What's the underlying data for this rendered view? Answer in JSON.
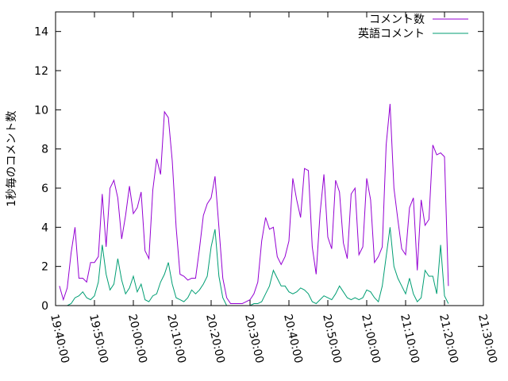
{
  "chart_data": {
    "type": "line",
    "ylabel": "1秒毎のコメント数",
    "xlim_seconds": [
      0,
      6600
    ],
    "ylim": [
      0,
      15
    ],
    "yticks": [
      0,
      2,
      4,
      6,
      8,
      10,
      12,
      14
    ],
    "xtick_labels": [
      "19:40:00",
      "19:50:00",
      "20:00:00",
      "20:10:00",
      "20:20:00",
      "20:30:00",
      "20:40:00",
      "20:50:00",
      "21:00:00",
      "21:10:00",
      "21:20:00",
      "21:30:00"
    ],
    "legend_position": "top-right",
    "grid": false,
    "series": [
      {
        "name": "コメント数",
        "color": "#9400d3",
        "points": [
          [
            60,
            1.0
          ],
          [
            120,
            0.3
          ],
          [
            180,
            0.9
          ],
          [
            240,
            2.7
          ],
          [
            300,
            4.0
          ],
          [
            360,
            1.4
          ],
          [
            420,
            1.4
          ],
          [
            480,
            1.2
          ],
          [
            540,
            2.2
          ],
          [
            600,
            2.2
          ],
          [
            660,
            2.5
          ],
          [
            720,
            5.7
          ],
          [
            780,
            3.0
          ],
          [
            840,
            6.0
          ],
          [
            900,
            6.4
          ],
          [
            960,
            5.5
          ],
          [
            1020,
            3.4
          ],
          [
            1080,
            4.6
          ],
          [
            1140,
            6.1
          ],
          [
            1200,
            4.7
          ],
          [
            1260,
            5.0
          ],
          [
            1320,
            5.8
          ],
          [
            1380,
            2.8
          ],
          [
            1440,
            2.4
          ],
          [
            1500,
            5.9
          ],
          [
            1560,
            7.5
          ],
          [
            1620,
            6.7
          ],
          [
            1680,
            9.9
          ],
          [
            1740,
            9.6
          ],
          [
            1800,
            7.4
          ],
          [
            1860,
            4.0
          ],
          [
            1920,
            1.6
          ],
          [
            1980,
            1.5
          ],
          [
            2040,
            1.3
          ],
          [
            2100,
            1.4
          ],
          [
            2160,
            1.4
          ],
          [
            2220,
            2.9
          ],
          [
            2280,
            4.6
          ],
          [
            2340,
            5.2
          ],
          [
            2400,
            5.5
          ],
          [
            2460,
            6.6
          ],
          [
            2520,
            4.0
          ],
          [
            2580,
            1.4
          ],
          [
            2640,
            0.4
          ],
          [
            2700,
            0.1
          ],
          [
            2760,
            0.1
          ],
          [
            2820,
            0.1
          ],
          [
            2880,
            0.1
          ],
          [
            2940,
            0.2
          ],
          [
            3000,
            0.3
          ],
          [
            3060,
            0.6
          ],
          [
            3120,
            1.2
          ],
          [
            3180,
            3.3
          ],
          [
            3240,
            4.5
          ],
          [
            3300,
            3.9
          ],
          [
            3360,
            4.0
          ],
          [
            3420,
            2.5
          ],
          [
            3480,
            2.1
          ],
          [
            3540,
            2.5
          ],
          [
            3600,
            3.3
          ],
          [
            3660,
            6.5
          ],
          [
            3720,
            5.4
          ],
          [
            3780,
            4.5
          ],
          [
            3840,
            7.0
          ],
          [
            3900,
            6.9
          ],
          [
            3960,
            3.0
          ],
          [
            4020,
            1.6
          ],
          [
            4080,
            4.7
          ],
          [
            4140,
            6.7
          ],
          [
            4200,
            3.5
          ],
          [
            4260,
            2.9
          ],
          [
            4320,
            6.4
          ],
          [
            4380,
            5.8
          ],
          [
            4440,
            3.2
          ],
          [
            4500,
            2.4
          ],
          [
            4560,
            5.7
          ],
          [
            4620,
            6.0
          ],
          [
            4680,
            2.6
          ],
          [
            4740,
            3.0
          ],
          [
            4800,
            6.5
          ],
          [
            4860,
            5.4
          ],
          [
            4920,
            2.2
          ],
          [
            4980,
            2.5
          ],
          [
            5040,
            3.0
          ],
          [
            5100,
            8.2
          ],
          [
            5160,
            10.3
          ],
          [
            5220,
            6.0
          ],
          [
            5280,
            4.4
          ],
          [
            5340,
            2.9
          ],
          [
            5400,
            2.6
          ],
          [
            5460,
            5.0
          ],
          [
            5520,
            5.5
          ],
          [
            5580,
            1.8
          ],
          [
            5640,
            5.4
          ],
          [
            5700,
            4.1
          ],
          [
            5760,
            4.4
          ],
          [
            5820,
            8.2
          ],
          [
            5880,
            7.7
          ],
          [
            5940,
            7.8
          ],
          [
            6000,
            7.6
          ],
          [
            6060,
            1.0
          ]
        ]
      },
      {
        "name": "英語コメント",
        "color": "#009e73",
        "points": [
          [
            60,
            0.0
          ],
          [
            120,
            0.0
          ],
          [
            180,
            0.0
          ],
          [
            240,
            0.1
          ],
          [
            300,
            0.4
          ],
          [
            360,
            0.5
          ],
          [
            420,
            0.7
          ],
          [
            480,
            0.4
          ],
          [
            540,
            0.3
          ],
          [
            600,
            0.5
          ],
          [
            660,
            1.2
          ],
          [
            720,
            3.1
          ],
          [
            780,
            1.6
          ],
          [
            840,
            0.8
          ],
          [
            900,
            1.1
          ],
          [
            960,
            2.4
          ],
          [
            1020,
            1.3
          ],
          [
            1080,
            0.6
          ],
          [
            1140,
            0.9
          ],
          [
            1200,
            1.5
          ],
          [
            1260,
            0.7
          ],
          [
            1320,
            1.1
          ],
          [
            1380,
            0.3
          ],
          [
            1440,
            0.2
          ],
          [
            1500,
            0.5
          ],
          [
            1560,
            0.6
          ],
          [
            1620,
            1.2
          ],
          [
            1680,
            1.6
          ],
          [
            1740,
            2.2
          ],
          [
            1800,
            1.1
          ],
          [
            1860,
            0.4
          ],
          [
            1920,
            0.3
          ],
          [
            1980,
            0.2
          ],
          [
            2040,
            0.4
          ],
          [
            2100,
            0.8
          ],
          [
            2160,
            0.6
          ],
          [
            2220,
            0.8
          ],
          [
            2280,
            1.1
          ],
          [
            2340,
            1.5
          ],
          [
            2400,
            3.0
          ],
          [
            2460,
            3.9
          ],
          [
            2520,
            1.5
          ],
          [
            2580,
            0.4
          ],
          [
            2640,
            0.0
          ],
          [
            2700,
            0.0
          ],
          [
            2760,
            0.0
          ],
          [
            2820,
            0.0
          ],
          [
            2880,
            0.0
          ],
          [
            2940,
            0.0
          ],
          [
            3000,
            0.0
          ],
          [
            3060,
            0.1
          ],
          [
            3120,
            0.1
          ],
          [
            3180,
            0.2
          ],
          [
            3240,
            0.6
          ],
          [
            3300,
            1.0
          ],
          [
            3360,
            1.8
          ],
          [
            3420,
            1.4
          ],
          [
            3480,
            1.0
          ],
          [
            3540,
            1.0
          ],
          [
            3600,
            0.7
          ],
          [
            3660,
            0.6
          ],
          [
            3720,
            0.7
          ],
          [
            3780,
            0.9
          ],
          [
            3840,
            0.8
          ],
          [
            3900,
            0.6
          ],
          [
            3960,
            0.2
          ],
          [
            4020,
            0.1
          ],
          [
            4080,
            0.3
          ],
          [
            4140,
            0.5
          ],
          [
            4200,
            0.4
          ],
          [
            4260,
            0.3
          ],
          [
            4320,
            0.6
          ],
          [
            4380,
            1.0
          ],
          [
            4440,
            0.7
          ],
          [
            4500,
            0.4
          ],
          [
            4560,
            0.3
          ],
          [
            4620,
            0.4
          ],
          [
            4680,
            0.3
          ],
          [
            4740,
            0.4
          ],
          [
            4800,
            0.8
          ],
          [
            4860,
            0.7
          ],
          [
            4920,
            0.4
          ],
          [
            4980,
            0.2
          ],
          [
            5040,
            1.0
          ],
          [
            5100,
            2.5
          ],
          [
            5160,
            4.0
          ],
          [
            5220,
            2.0
          ],
          [
            5280,
            1.4
          ],
          [
            5340,
            1.0
          ],
          [
            5400,
            0.6
          ],
          [
            5460,
            1.4
          ],
          [
            5520,
            0.6
          ],
          [
            5580,
            0.2
          ],
          [
            5640,
            0.4
          ],
          [
            5700,
            1.8
          ],
          [
            5760,
            1.5
          ],
          [
            5820,
            1.5
          ],
          [
            5880,
            0.6
          ],
          [
            5940,
            3.1
          ],
          [
            6000,
            0.5
          ],
          [
            6060,
            0.1
          ]
        ]
      }
    ]
  }
}
